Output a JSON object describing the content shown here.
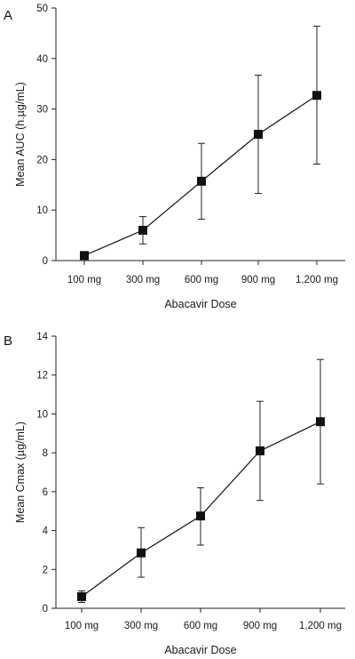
{
  "chart_data": [
    {
      "type": "line",
      "panel_label": "A",
      "categories": [
        "100 mg",
        "300 mg",
        "600 mg",
        "900 mg",
        "1,200 mg"
      ],
      "series": [
        {
          "values": [
            1.0,
            6.0,
            15.7,
            25.0,
            32.7
          ],
          "error_low": [
            1.0,
            3.3,
            8.2,
            13.3,
            19.1
          ],
          "error_high": [
            1.0,
            8.7,
            23.2,
            36.7,
            46.4
          ]
        }
      ],
      "xlabel": "Abacavir Dose",
      "ylabel": "Mean AUC (h.µg/mL)",
      "ylim": [
        0,
        50
      ],
      "yticks": [
        "0",
        "10",
        "20",
        "30",
        "40",
        "50"
      ],
      "grid": false,
      "marker": "square",
      "color": "#111111"
    },
    {
      "type": "line",
      "panel_label": "B",
      "categories": [
        "100 mg",
        "300 mg",
        "600 mg",
        "900 mg",
        "1,200 mg"
      ],
      "series": [
        {
          "values": [
            0.6,
            2.85,
            4.75,
            8.1,
            9.6
          ],
          "error_low": [
            0.3,
            1.6,
            3.25,
            5.55,
            6.4
          ],
          "error_high": [
            0.9,
            4.15,
            6.2,
            10.65,
            12.8
          ]
        }
      ],
      "xlabel": "Abacavir Dose",
      "ylabel": "Mean Cmax (µg/mL)",
      "ylim": [
        0,
        14
      ],
      "yticks": [
        "0",
        "2",
        "4",
        "6",
        "8",
        "10",
        "12",
        "14"
      ],
      "grid": false,
      "marker": "square",
      "color": "#111111"
    }
  ]
}
